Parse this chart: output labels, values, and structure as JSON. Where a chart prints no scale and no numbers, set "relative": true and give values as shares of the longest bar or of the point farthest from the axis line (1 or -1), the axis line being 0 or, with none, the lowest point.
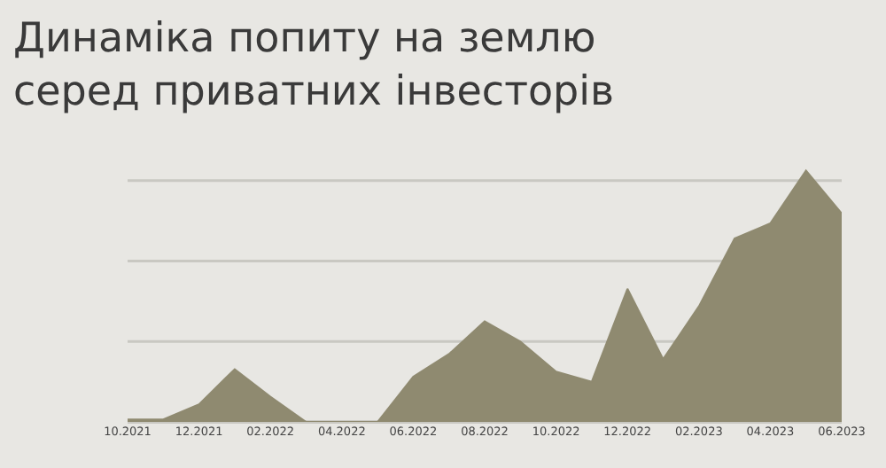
{
  "chart_data": {
    "type": "area",
    "title": "Динаміка попиту на землю\nсеред приватних інвесторів",
    "relative": true,
    "ref_lines": [
      {
        "axis": "y",
        "value": 0.32,
        "color": "#c9c8c2"
      },
      {
        "axis": "y",
        "value": 0.64,
        "color": "#c9c8c2"
      },
      {
        "axis": "y",
        "value": 0.96,
        "color": "#c9c8c2"
      }
    ],
    "legend": false,
    "color": "#8f8a70",
    "categories": [
      "10.2021",
      null,
      "12.2021",
      null,
      "02.2022",
      null,
      "04.2022",
      null,
      "06.2022",
      null,
      "08.2022",
      null,
      "10.2022",
      null,
      "12.2022",
      null,
      "02.2023",
      null,
      "04.2023",
      null,
      "06.2023"
    ],
    "values": [
      0.01,
      0.01,
      0.07,
      0.21,
      0.1,
      0,
      0,
      0,
      0.18,
      0.27,
      0.4,
      0.32,
      0.2,
      0.16,
      0.53,
      0.25,
      0.46,
      0.73,
      0.79,
      1,
      0.83
    ]
  }
}
